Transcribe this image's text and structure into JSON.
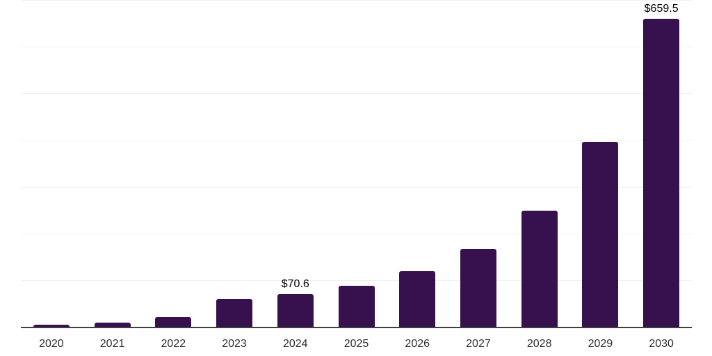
{
  "chart_data": {
    "type": "bar",
    "title": "",
    "xlabel": "",
    "ylabel": "",
    "categories": [
      "2020",
      "2021",
      "2022",
      "2023",
      "2024",
      "2025",
      "2026",
      "2027",
      "2028",
      "2029",
      "2030"
    ],
    "values": [
      4.2,
      8.7,
      21.6,
      60.2,
      70.6,
      87.9,
      118.8,
      166.8,
      248.7,
      396.9,
      659.5
    ],
    "data_labels": [
      "",
      "",
      "",
      "",
      "$70.6",
      "",
      "",
      "",
      "",
      "",
      "$659.5"
    ],
    "ylim": [
      0,
      700
    ],
    "grid": true,
    "gridline_values": [
      100,
      200,
      300,
      400,
      500,
      600,
      700
    ],
    "y_tick_labels_shown": false,
    "legend": false,
    "colors": {
      "bar": "#37114E",
      "gridline": "#F1F1F2",
      "axis_line": "#3F3F3F",
      "tick_label": "#2E2E2E",
      "data_label": "#000000",
      "background": "#FFFFFF"
    }
  }
}
